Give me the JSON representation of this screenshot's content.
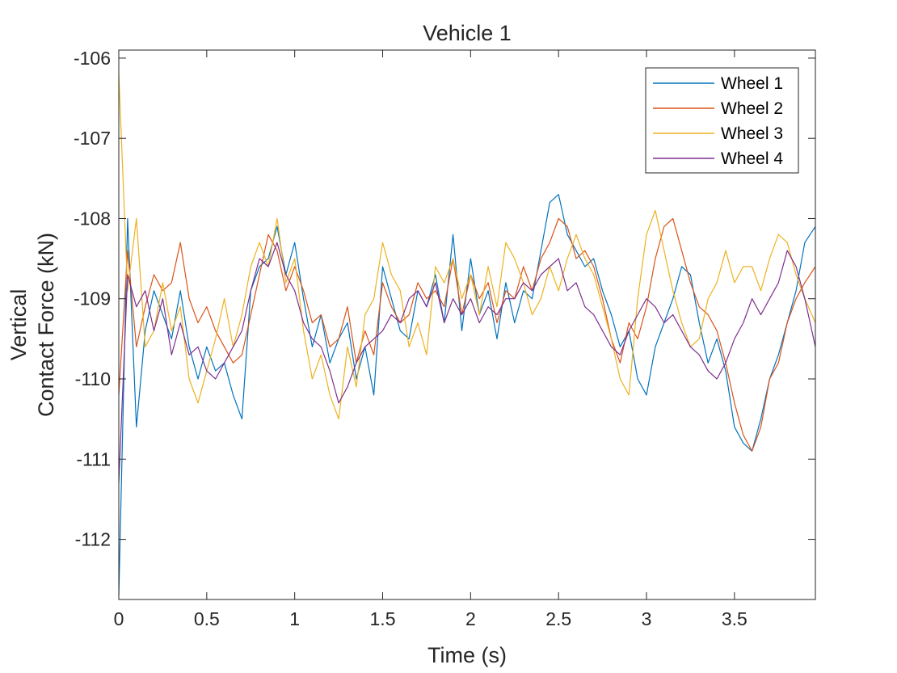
{
  "chart_data": {
    "type": "line",
    "title": "Vehicle 1",
    "xlabel": "Time (s)",
    "ylabel": [
      "Vertical",
      "Contact Force (kN)"
    ],
    "xlim": [
      0,
      3.96
    ],
    "ylim": [
      -112.75,
      -105.9
    ],
    "xticks": [
      0,
      0.5,
      1,
      1.5,
      2,
      2.5,
      3,
      3.5
    ],
    "xtick_labels": [
      "0",
      "0.5",
      "1",
      "1.5",
      "2",
      "2.5",
      "3",
      "3.5"
    ],
    "yticks": [
      -106,
      -107,
      -108,
      -109,
      -110,
      -111,
      -112
    ],
    "ytick_labels": [
      "-106",
      "-107",
      "-108",
      "-109",
      "-110",
      "-111",
      "-112"
    ],
    "legend_position": "top-right",
    "grid": false,
    "series": [
      {
        "name": "Wheel 1",
        "color": "#0072BD",
        "x": [
          0,
          0.05,
          0.1,
          0.15,
          0.2,
          0.25,
          0.3,
          0.35,
          0.4,
          0.45,
          0.5,
          0.55,
          0.6,
          0.65,
          0.7,
          0.75,
          0.8,
          0.85,
          0.9,
          0.95,
          1.0,
          1.05,
          1.1,
          1.15,
          1.2,
          1.25,
          1.3,
          1.35,
          1.4,
          1.45,
          1.5,
          1.55,
          1.6,
          1.65,
          1.7,
          1.75,
          1.8,
          1.85,
          1.9,
          1.95,
          2.0,
          2.05,
          2.1,
          2.15,
          2.2,
          2.25,
          2.3,
          2.35,
          2.4,
          2.45,
          2.5,
          2.55,
          2.6,
          2.65,
          2.7,
          2.75,
          2.8,
          2.85,
          2.9,
          2.95,
          3.0,
          3.05,
          3.1,
          3.15,
          3.2,
          3.25,
          3.3,
          3.35,
          3.4,
          3.45,
          3.5,
          3.55,
          3.6,
          3.65,
          3.7,
          3.75,
          3.8,
          3.85,
          3.9,
          3.96
        ],
        "y": [
          -112.7,
          -108.0,
          -110.6,
          -109.4,
          -108.9,
          -109.2,
          -109.5,
          -108.9,
          -109.6,
          -110.0,
          -109.6,
          -109.9,
          -109.8,
          -110.2,
          -110.5,
          -108.9,
          -108.6,
          -108.5,
          -108.1,
          -108.7,
          -108.3,
          -109.0,
          -109.6,
          -109.2,
          -109.8,
          -109.5,
          -109.3,
          -110.0,
          -109.6,
          -110.2,
          -108.6,
          -109.0,
          -109.4,
          -109.5,
          -108.9,
          -109.1,
          -108.7,
          -109.3,
          -108.2,
          -109.4,
          -108.5,
          -109.2,
          -108.9,
          -109.5,
          -108.8,
          -109.3,
          -108.9,
          -109.0,
          -108.4,
          -107.8,
          -107.7,
          -108.2,
          -108.4,
          -108.6,
          -108.5,
          -108.9,
          -109.2,
          -109.6,
          -109.4,
          -110.0,
          -110.2,
          -109.6,
          -109.3,
          -109.0,
          -108.6,
          -108.7,
          -109.3,
          -109.8,
          -109.5,
          -109.9,
          -110.6,
          -110.8,
          -110.9,
          -110.5,
          -110.0,
          -109.7,
          -109.3,
          -108.9,
          -108.3,
          -108.1
        ]
      },
      {
        "name": "Wheel 2",
        "color": "#D95319",
        "x": [
          0,
          0.05,
          0.1,
          0.15,
          0.2,
          0.25,
          0.3,
          0.35,
          0.4,
          0.45,
          0.5,
          0.55,
          0.6,
          0.65,
          0.7,
          0.75,
          0.8,
          0.85,
          0.9,
          0.95,
          1.0,
          1.05,
          1.1,
          1.15,
          1.2,
          1.25,
          1.3,
          1.35,
          1.4,
          1.45,
          1.5,
          1.55,
          1.6,
          1.65,
          1.7,
          1.75,
          1.8,
          1.85,
          1.9,
          1.95,
          2.0,
          2.05,
          2.1,
          2.15,
          2.2,
          2.25,
          2.3,
          2.35,
          2.4,
          2.45,
          2.5,
          2.55,
          2.6,
          2.65,
          2.7,
          2.75,
          2.8,
          2.85,
          2.9,
          2.95,
          3.0,
          3.05,
          3.1,
          3.15,
          3.2,
          3.25,
          3.3,
          3.35,
          3.4,
          3.45,
          3.5,
          3.55,
          3.6,
          3.65,
          3.7,
          3.75,
          3.8,
          3.85,
          3.9,
          3.96
        ],
        "y": [
          -110.2,
          -108.4,
          -109.6,
          -109.1,
          -108.7,
          -108.9,
          -108.8,
          -108.3,
          -109.0,
          -109.3,
          -109.1,
          -109.4,
          -109.6,
          -109.8,
          -109.7,
          -109.2,
          -108.7,
          -108.2,
          -108.4,
          -108.9,
          -108.6,
          -108.9,
          -109.3,
          -109.2,
          -109.6,
          -109.5,
          -109.1,
          -109.8,
          -109.4,
          -109.7,
          -108.8,
          -109.1,
          -109.3,
          -109.2,
          -108.8,
          -109.0,
          -108.9,
          -109.1,
          -108.5,
          -109.2,
          -108.7,
          -109.0,
          -108.8,
          -109.3,
          -108.9,
          -109.0,
          -108.6,
          -108.9,
          -108.5,
          -108.3,
          -108.0,
          -108.1,
          -108.5,
          -108.4,
          -108.6,
          -109.0,
          -109.5,
          -109.8,
          -109.3,
          -109.5,
          -109.1,
          -108.5,
          -108.1,
          -108.0,
          -108.4,
          -108.8,
          -109.1,
          -109.2,
          -109.4,
          -109.8,
          -110.3,
          -110.7,
          -110.9,
          -110.6,
          -110.0,
          -109.8,
          -109.3,
          -109.0,
          -108.8,
          -108.6
        ]
      },
      {
        "name": "Wheel 3",
        "color": "#EDB120",
        "x": [
          0,
          0.05,
          0.1,
          0.15,
          0.2,
          0.25,
          0.3,
          0.35,
          0.4,
          0.45,
          0.5,
          0.55,
          0.6,
          0.65,
          0.7,
          0.75,
          0.8,
          0.85,
          0.9,
          0.95,
          1.0,
          1.05,
          1.1,
          1.15,
          1.2,
          1.25,
          1.3,
          1.35,
          1.4,
          1.45,
          1.5,
          1.55,
          1.6,
          1.65,
          1.7,
          1.75,
          1.8,
          1.85,
          1.9,
          1.95,
          2.0,
          2.05,
          2.1,
          2.15,
          2.2,
          2.25,
          2.3,
          2.35,
          2.4,
          2.45,
          2.5,
          2.55,
          2.6,
          2.65,
          2.7,
          2.75,
          2.8,
          2.85,
          2.9,
          2.95,
          3.0,
          3.05,
          3.1,
          3.15,
          3.2,
          3.25,
          3.3,
          3.35,
          3.4,
          3.45,
          3.5,
          3.55,
          3.6,
          3.65,
          3.7,
          3.75,
          3.8,
          3.85,
          3.9,
          3.96
        ],
        "y": [
          -106.2,
          -108.9,
          -108.0,
          -109.6,
          -109.4,
          -108.8,
          -109.4,
          -109.1,
          -110.0,
          -110.3,
          -109.9,
          -109.5,
          -109.0,
          -109.6,
          -109.2,
          -108.6,
          -108.3,
          -108.6,
          -108.0,
          -108.8,
          -108.5,
          -109.4,
          -110.0,
          -109.7,
          -110.2,
          -110.5,
          -109.6,
          -110.1,
          -109.2,
          -109.0,
          -108.3,
          -108.7,
          -108.9,
          -109.6,
          -109.3,
          -109.7,
          -108.6,
          -108.8,
          -108.5,
          -109.0,
          -108.7,
          -109.2,
          -108.6,
          -109.1,
          -108.3,
          -108.5,
          -108.8,
          -109.2,
          -109.0,
          -108.6,
          -108.9,
          -108.5,
          -108.2,
          -108.5,
          -108.7,
          -109.1,
          -109.5,
          -110.0,
          -110.2,
          -109.0,
          -108.2,
          -107.9,
          -108.4,
          -108.9,
          -109.3,
          -109.6,
          -109.5,
          -109.0,
          -108.8,
          -108.4,
          -108.8,
          -108.6,
          -108.6,
          -108.9,
          -108.5,
          -108.2,
          -108.3,
          -108.7,
          -109.0,
          -109.3
        ]
      },
      {
        "name": "Wheel 4",
        "color": "#7E2F8E",
        "x": [
          0,
          0.05,
          0.1,
          0.15,
          0.2,
          0.25,
          0.3,
          0.35,
          0.4,
          0.45,
          0.5,
          0.55,
          0.6,
          0.65,
          0.7,
          0.75,
          0.8,
          0.85,
          0.9,
          0.95,
          1.0,
          1.05,
          1.1,
          1.15,
          1.2,
          1.25,
          1.3,
          1.35,
          1.4,
          1.45,
          1.5,
          1.55,
          1.6,
          1.65,
          1.7,
          1.75,
          1.8,
          1.85,
          1.9,
          1.95,
          2.0,
          2.05,
          2.1,
          2.15,
          2.2,
          2.25,
          2.3,
          2.35,
          2.4,
          2.45,
          2.5,
          2.55,
          2.6,
          2.65,
          2.7,
          2.75,
          2.8,
          2.85,
          2.9,
          2.95,
          3.0,
          3.05,
          3.1,
          3.15,
          3.2,
          3.25,
          3.3,
          3.35,
          3.4,
          3.45,
          3.5,
          3.55,
          3.6,
          3.65,
          3.7,
          3.75,
          3.8,
          3.85,
          3.9,
          3.96
        ],
        "y": [
          -111.3,
          -108.7,
          -109.1,
          -108.9,
          -109.4,
          -109.0,
          -109.7,
          -109.3,
          -109.7,
          -109.6,
          -109.9,
          -110.0,
          -109.8,
          -109.6,
          -109.4,
          -108.9,
          -108.5,
          -108.6,
          -108.3,
          -108.7,
          -108.9,
          -109.3,
          -109.5,
          -109.6,
          -109.9,
          -110.3,
          -110.1,
          -109.8,
          -109.6,
          -109.5,
          -109.4,
          -109.2,
          -109.3,
          -109.0,
          -108.9,
          -109.1,
          -108.8,
          -109.3,
          -109.0,
          -109.2,
          -109.0,
          -109.3,
          -109.1,
          -109.2,
          -109.0,
          -109.0,
          -108.8,
          -108.9,
          -108.7,
          -108.6,
          -108.5,
          -108.9,
          -108.8,
          -109.1,
          -109.2,
          -109.4,
          -109.6,
          -109.7,
          -109.4,
          -109.2,
          -109.0,
          -109.1,
          -109.3,
          -109.2,
          -109.4,
          -109.6,
          -109.7,
          -109.9,
          -110.0,
          -109.8,
          -109.5,
          -109.3,
          -109.0,
          -109.2,
          -109.0,
          -108.8,
          -108.4,
          -108.6,
          -109.0,
          -109.6
        ]
      }
    ]
  }
}
